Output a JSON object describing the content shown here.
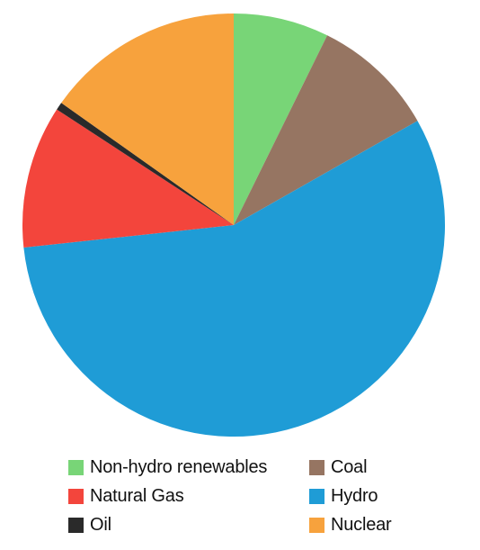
{
  "chart_data": {
    "type": "pie",
    "title": "",
    "slices": [
      {
        "label": "Non-hydro renewables",
        "value": 7.3,
        "color": "#78d577"
      },
      {
        "label": "Coal",
        "value": 9.5,
        "color": "#967562"
      },
      {
        "label": "Hydro",
        "value": 56.5,
        "color": "#1f9cd6"
      },
      {
        "label": "Natural Gas",
        "value": 10.9,
        "color": "#f3453c"
      },
      {
        "label": "Oil",
        "value": 0.6,
        "color": "#2a2a2a"
      },
      {
        "label": "Nuclear",
        "value": 15.2,
        "color": "#f7a23d"
      }
    ],
    "legend": {
      "position": "bottom",
      "items": [
        {
          "label": "Non-hydro renewables",
          "color": "#78d577"
        },
        {
          "label": "Coal",
          "color": "#967562"
        },
        {
          "label": "Natural Gas",
          "color": "#f3453c"
        },
        {
          "label": "Hydro",
          "color": "#1f9cd6"
        },
        {
          "label": "Oil",
          "color": "#2a2a2a"
        },
        {
          "label": "Nuclear",
          "color": "#f7a23d"
        }
      ]
    }
  }
}
